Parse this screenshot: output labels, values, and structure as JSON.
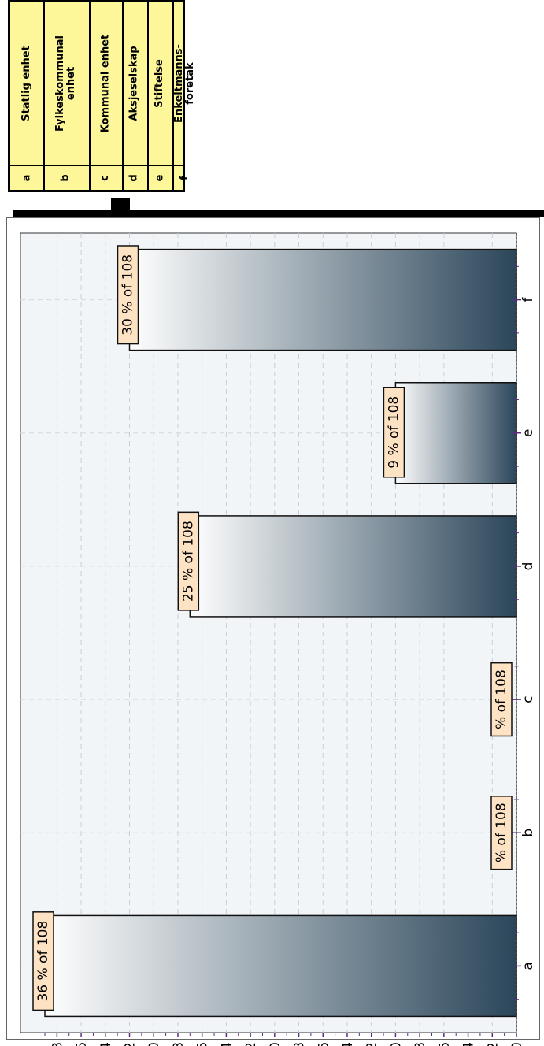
{
  "legend": {
    "rows": [
      {
        "key": "a",
        "label": "Statlig enhet"
      },
      {
        "key": "b",
        "label": "Fylkeskommunal\nenhet"
      },
      {
        "key": "c",
        "label": "Kommunal enhet"
      },
      {
        "key": "d",
        "label": "Aksjeselskap"
      },
      {
        "key": "e",
        "label": "Stiftelse"
      },
      {
        "key": "f",
        "label": "Enkeltmanns-\nforetak"
      }
    ]
  },
  "chart_data": {
    "type": "bar",
    "orientation": "rotated-90-counterclockwise",
    "categories": [
      "a",
      "b",
      "c",
      "d",
      "e",
      "f"
    ],
    "values": [
      39,
      0,
      0,
      27,
      10,
      32
    ],
    "data_labels": [
      "36 % of 108",
      "% of 108",
      "% of 108",
      "25 % of 108",
      "9 % of 108",
      "30 % of 108"
    ],
    "ylim": [
      0,
      39
    ],
    "yticks": [
      0,
      2,
      4,
      6,
      8,
      10,
      12,
      14,
      16,
      18,
      20,
      22,
      24,
      26,
      28,
      30,
      32,
      34,
      36,
      38
    ],
    "grid": true,
    "colors": {
      "bar_dark": "#2b465a",
      "bar_light": "#ffffff",
      "plot_bg": "#f2f5f8",
      "label_bg": "#fde3c4",
      "legend_bg": "#fdf79a"
    }
  }
}
